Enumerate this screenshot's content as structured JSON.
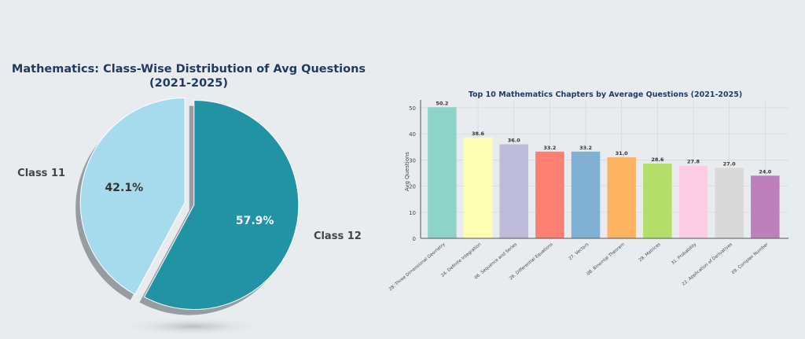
{
  "chart_data": [
    {
      "type": "pie",
      "title": "Mathematics: Class-Wise Distribution of Avg Questions",
      "subtitle": "(2021-2025)",
      "slices": [
        {
          "label": "Class 12",
          "value": 57.9,
          "pct_label": "57.9%",
          "color": "#2293a5"
        },
        {
          "label": "Class 11",
          "value": 42.1,
          "pct_label": "42.1%",
          "color": "#a6dbee"
        }
      ],
      "exploded": true,
      "shadow": true
    },
    {
      "type": "bar",
      "title": "Top 10 Mathematics Chapters by Average Questions (2021-2025)",
      "xlabel": "",
      "ylabel": "Avg Questions",
      "ylim": [
        0,
        53
      ],
      "yticks": [
        0,
        10,
        20,
        30,
        40,
        50
      ],
      "grid": true,
      "categories": [
        "28. Three Dimensional Geometry",
        "24. Definite Integration",
        "06. Sequence and Series",
        "26. Differential Equations",
        "27. Vectors",
        "08. Binomial Theorem",
        "28. Matrices",
        "31. Probability",
        "22. Application of Derivatives",
        "09. Complex Number"
      ],
      "values": [
        50.2,
        38.6,
        36.0,
        33.2,
        33.2,
        31.0,
        28.6,
        27.8,
        27.0,
        24.0
      ],
      "value_labels": [
        "50.2",
        "38.6",
        "36.0",
        "33.2",
        "33.2",
        "31.0",
        "28.6",
        "27.8",
        "27.0",
        "24.0"
      ],
      "colors": [
        "#8dd3c7",
        "#ffffb3",
        "#bebada",
        "#fb8072",
        "#80b1d3",
        "#fdb462",
        "#b3de69",
        "#fccde5",
        "#d9d9d9",
        "#bc80bd"
      ]
    }
  ]
}
